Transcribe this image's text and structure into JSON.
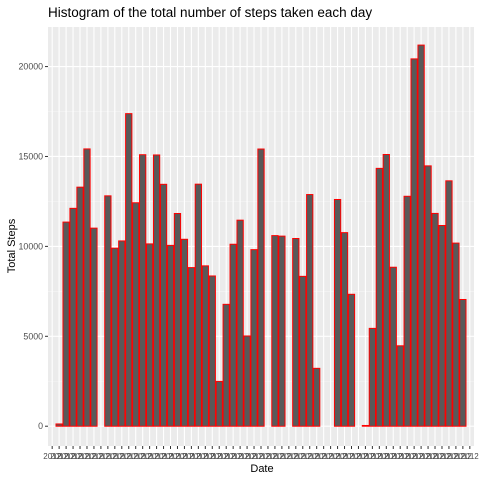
{
  "chart_data": {
    "type": "bar",
    "title": "Histogram of the total number of steps taken each day",
    "xlabel": "Date",
    "ylabel": "Total Steps",
    "ylim": [
      -1100,
      22200
    ],
    "yticks": [
      0,
      5000,
      10000,
      15000,
      20000
    ],
    "x_tick_text": "2012",
    "grid": true,
    "legend": "none",
    "colors": {
      "panel": "#ebebeb",
      "grid_major": "#ffffff",
      "grid_minor": "#f5f5f5",
      "bar_fill": "#595959",
      "bar_outline": "#ff0000"
    },
    "categories": [
      "2012-10-01",
      "2012-10-02",
      "2012-10-03",
      "2012-10-04",
      "2012-10-05",
      "2012-10-06",
      "2012-10-07",
      "2012-10-08",
      "2012-10-09",
      "2012-10-10",
      "2012-10-11",
      "2012-10-12",
      "2012-10-13",
      "2012-10-14",
      "2012-10-15",
      "2012-10-16",
      "2012-10-17",
      "2012-10-18",
      "2012-10-19",
      "2012-10-20",
      "2012-10-21",
      "2012-10-22",
      "2012-10-23",
      "2012-10-24",
      "2012-10-25",
      "2012-10-26",
      "2012-10-27",
      "2012-10-28",
      "2012-10-29",
      "2012-10-30",
      "2012-10-31",
      "2012-11-01",
      "2012-11-02",
      "2012-11-03",
      "2012-11-04",
      "2012-11-05",
      "2012-11-06",
      "2012-11-07",
      "2012-11-08",
      "2012-11-09",
      "2012-11-10",
      "2012-11-11",
      "2012-11-12",
      "2012-11-13",
      "2012-11-14",
      "2012-11-15",
      "2012-11-16",
      "2012-11-17",
      "2012-11-18",
      "2012-11-19",
      "2012-11-20",
      "2012-11-21",
      "2012-11-22",
      "2012-11-23",
      "2012-11-24",
      "2012-11-25",
      "2012-11-26",
      "2012-11-27",
      "2012-11-28",
      "2012-11-29",
      "2012-11-30"
    ],
    "values": [
      0,
      126,
      11352,
      12116,
      13294,
      15420,
      11015,
      0,
      12811,
      9900,
      10304,
      17382,
      12426,
      15098,
      10139,
      15084,
      13452,
      10056,
      11829,
      10395,
      8821,
      13460,
      8918,
      8355,
      2492,
      6778,
      10119,
      11458,
      5018,
      9819,
      15414,
      0,
      10600,
      10571,
      0,
      10439,
      8334,
      12883,
      3219,
      0,
      0,
      12608,
      10765,
      7336,
      0,
      41,
      5441,
      14339,
      15110,
      8841,
      4472,
      12787,
      20427,
      21194,
      14478,
      11834,
      11162,
      13646,
      10183,
      7047,
      0
    ]
  }
}
